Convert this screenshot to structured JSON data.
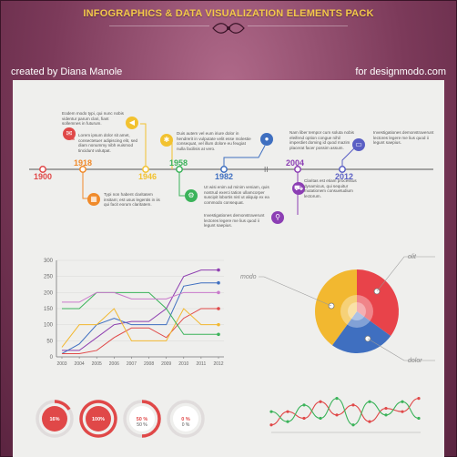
{
  "header": {
    "title": "INFOGRAPHICS & DATA VISUALIZATION ELEMENTS PACK",
    "credit_left": "created by Diana Manole",
    "credit_right": "for designmodo.com"
  },
  "timeline": {
    "years": [
      {
        "label": "1900",
        "color": "#e04848"
      },
      {
        "label": "1918",
        "color": "#f08a2a"
      },
      {
        "label": "1946",
        "color": "#f2c230"
      },
      {
        "label": "1958",
        "color": "#3bb35a"
      },
      {
        "label": "1982",
        "color": "#3f6fc0"
      },
      {
        "label": "2004",
        "color": "#8c3fb4"
      },
      {
        "label": "2012",
        "color": "#5a5fc4"
      }
    ],
    "notes": [
      "Eodem modo typi, qui nunc nobis videntur parum clari, fiant sollemnes in futurum.",
      "Lorem ipsum dolor sit amet, consectetuer adipiscing elit, sed diam nonummy nibh euismod tincidunt volutpat.",
      "Typi non habent claritatem insitam; est usus legentis in iis qui facit eorum claritatem.",
      "Duis autem vel eum iriure dolor in hendrerit in vulputate velit esse molestie consequat, vel illum dolore eu feugiat nulla facilisis at vero.",
      "Ut wisi enim ad minim veniam, quis nostrud exerci tation ullamcorper suscipit lobortis nisl ut aliquip ex ea commodo consequat.",
      "Investigationes demonstraverunt lectores legere me lius quod ii legunt saepius.",
      "Nam liber tempor cum soluta nobis eleifend option congue nihil imperdiet doming id quod mazim placerat facer possim assum.",
      "Claritas est etiam processus dynamicus, qui sequitur mutationem consuetudium lectorum.",
      "Investigationes demonstraverunt lectores legere me lius quod ii legunt saepius."
    ]
  },
  "chart_data": [
    {
      "type": "line",
      "x": [
        "2003",
        "2004",
        "2005",
        "2006",
        "2007",
        "2008",
        "2009",
        "2010",
        "2011",
        "2012"
      ],
      "ylim": [
        0,
        300
      ],
      "yticks": [
        0,
        50,
        100,
        150,
        200,
        250,
        300
      ],
      "series": [
        {
          "color": "#8e3fb0",
          "values": [
            20,
            20,
            60,
            100,
            110,
            110,
            150,
            250,
            270,
            270
          ]
        },
        {
          "color": "#3f6fc0",
          "values": [
            10,
            40,
            100,
            120,
            100,
            100,
            100,
            220,
            230,
            230
          ]
        },
        {
          "color": "#e04848",
          "values": [
            10,
            10,
            20,
            60,
            90,
            90,
            60,
            120,
            150,
            150
          ]
        },
        {
          "color": "#f2b830",
          "values": [
            30,
            100,
            100,
            150,
            50,
            50,
            50,
            150,
            100,
            100
          ]
        },
        {
          "color": "#3bb35a",
          "values": [
            150,
            150,
            200,
            200,
            200,
            200,
            150,
            70,
            70,
            70
          ]
        },
        {
          "color": "#c97acb",
          "values": [
            170,
            170,
            200,
            200,
            180,
            180,
            180,
            200,
            200,
            200
          ]
        }
      ]
    },
    {
      "type": "pie",
      "labels": [
        "modo",
        "olit",
        "dolor"
      ],
      "slices": [
        {
          "color": "#e8434a",
          "value": 35
        },
        {
          "color": "#3f6fc0",
          "value": 25
        },
        {
          "color": "#f2b830",
          "value": 40
        }
      ]
    },
    {
      "type": "gauge",
      "items": [
        {
          "label": "16%",
          "value": 16
        },
        {
          "label": "100%",
          "value": 100
        },
        {
          "label": "50 %",
          "value": 50
        },
        {
          "label": "0 %",
          "value": 0
        }
      ]
    },
    {
      "type": "line",
      "series": [
        {
          "color": "#e04848",
          "values": [
            10,
            30,
            20,
            45,
            25,
            40,
            15,
            35,
            30,
            50
          ]
        },
        {
          "color": "#3bb35a",
          "values": [
            30,
            15,
            40,
            20,
            50,
            10,
            45,
            25,
            45,
            20
          ]
        }
      ]
    }
  ]
}
